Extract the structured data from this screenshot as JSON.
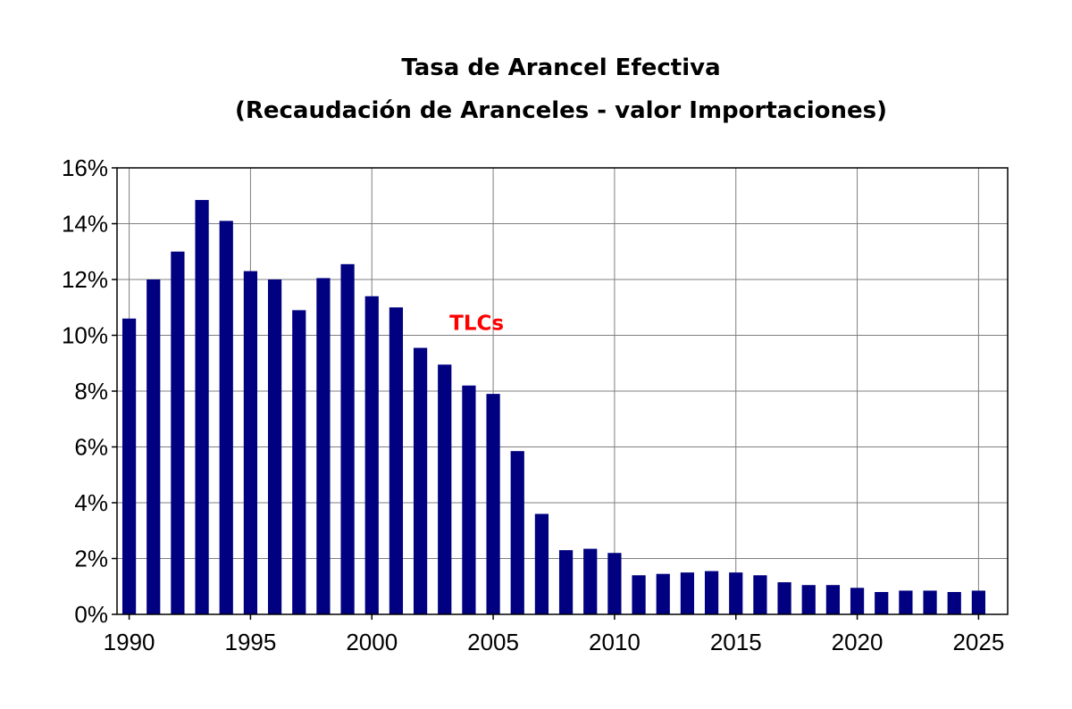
{
  "chart_data": {
    "type": "bar",
    "title": "Tasa de Arancel Efectiva",
    "subtitle": "(Recaudación de Aranceles - valor Importaciones)",
    "xlabel": "",
    "ylabel": "",
    "x": [
      1990,
      1991,
      1992,
      1993,
      1994,
      1995,
      1996,
      1997,
      1998,
      1999,
      2000,
      2001,
      2002,
      2003,
      2004,
      2005,
      2006,
      2007,
      2008,
      2009,
      2010,
      2011,
      2012,
      2013,
      2014,
      2015,
      2016,
      2017,
      2018,
      2019,
      2020,
      2021,
      2022,
      2023,
      2024,
      2025
    ],
    "values": [
      10.6,
      12.0,
      13.0,
      14.85,
      14.1,
      12.3,
      12.0,
      10.9,
      12.05,
      12.55,
      11.4,
      11.0,
      9.55,
      8.95,
      8.2,
      7.9,
      5.85,
      3.6,
      2.3,
      2.35,
      2.2,
      1.4,
      1.45,
      1.5,
      1.55,
      1.5,
      1.4,
      1.15,
      1.05,
      1.05,
      0.95,
      0.8,
      0.85,
      0.85,
      0.8,
      0.85
    ],
    "ylim": [
      0,
      16
    ],
    "xlim": [
      1989.5,
      2026.2
    ],
    "yticks": [
      0,
      2,
      4,
      6,
      8,
      10,
      12,
      14,
      16
    ],
    "ytick_labels": [
      "0%",
      "2%",
      "4%",
      "6%",
      "8%",
      "10%",
      "12%",
      "14%",
      "16%"
    ],
    "xticks": [
      1990,
      1995,
      2000,
      2005,
      2010,
      2015,
      2020,
      2025
    ],
    "xtick_labels": [
      "1990",
      "1995",
      "2000",
      "2005",
      "2010",
      "2015",
      "2020",
      "2025"
    ],
    "grid": true,
    "legend": "none",
    "bar_color": "#000080",
    "annotation": {
      "text": "TLCs",
      "color": "#ff0000",
      "x": 2003.2,
      "y": 10.2
    }
  }
}
